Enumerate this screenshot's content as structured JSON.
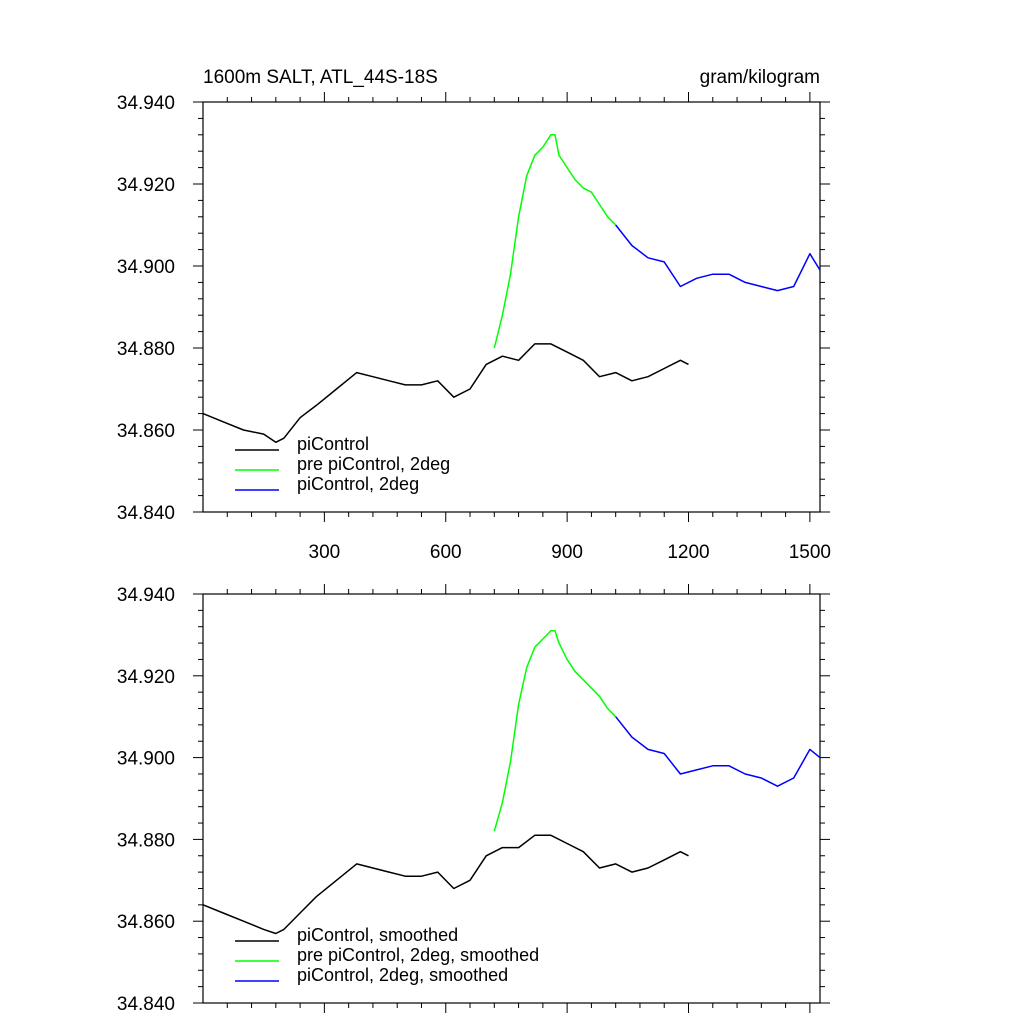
{
  "page": {
    "title_left": "1600m SALT, ATL_44S-18S",
    "title_right": "gram/kilogram"
  },
  "chart_data": [
    {
      "type": "line",
      "title": "1600m SALT, ATL_44S-18S",
      "units": "gram/kilogram",
      "xlim": [
        0,
        1525
      ],
      "ylim": [
        34.84,
        34.94
      ],
      "x_ticks": [
        300,
        600,
        900,
        1200,
        1500
      ],
      "x_tick_labels": [
        "300",
        "600",
        "900",
        "1200",
        "1500"
      ],
      "y_ticks": [
        34.84,
        34.86,
        34.88,
        34.9,
        34.92,
        34.94
      ],
      "y_tick_labels": [
        "34.840",
        "34.860",
        "34.880",
        "34.900",
        "34.920",
        "34.940"
      ],
      "grid": false,
      "legend_position": "bottom-left",
      "series": [
        {
          "name": "piControl",
          "color": "#000000",
          "x": [
            0,
            50,
            100,
            150,
            180,
            200,
            240,
            280,
            330,
            380,
            420,
            460,
            500,
            540,
            580,
            620,
            660,
            700,
            740,
            780,
            820,
            860,
            900,
            940,
            980,
            1020,
            1060,
            1100,
            1140,
            1180,
            1200
          ],
          "y": [
            34.864,
            34.862,
            34.86,
            34.859,
            34.857,
            34.858,
            34.863,
            34.866,
            34.87,
            34.874,
            34.873,
            34.872,
            34.871,
            34.871,
            34.872,
            34.868,
            34.87,
            34.876,
            34.878,
            34.877,
            34.881,
            34.881,
            34.879,
            34.877,
            34.873,
            34.874,
            34.872,
            34.873,
            34.875,
            34.877,
            34.876
          ]
        },
        {
          "name": "pre piControl, 2deg",
          "color": "#00ff00",
          "x": [
            720,
            740,
            760,
            780,
            800,
            820,
            840,
            860,
            870,
            880,
            900,
            920,
            940,
            960,
            980,
            1000,
            1020
          ],
          "y": [
            34.88,
            34.888,
            34.898,
            34.912,
            34.922,
            34.927,
            34.929,
            34.932,
            34.932,
            34.927,
            34.924,
            34.921,
            34.919,
            34.918,
            34.915,
            34.912,
            34.91
          ]
        },
        {
          "name": "piControl, 2deg",
          "color": "#0000ff",
          "x": [
            1020,
            1060,
            1100,
            1140,
            1180,
            1220,
            1260,
            1300,
            1340,
            1380,
            1420,
            1460,
            1500,
            1525
          ],
          "y": [
            34.91,
            34.905,
            34.902,
            34.901,
            34.895,
            34.897,
            34.898,
            34.898,
            34.896,
            34.895,
            34.894,
            34.895,
            34.903,
            34.899
          ]
        }
      ]
    },
    {
      "type": "line",
      "xlim": [
        0,
        1525
      ],
      "ylim": [
        34.84,
        34.94
      ],
      "y_ticks": [
        34.84,
        34.86,
        34.88,
        34.9,
        34.92,
        34.94
      ],
      "y_tick_labels": [
        "34.840",
        "34.860",
        "34.880",
        "34.900",
        "34.920",
        "34.940"
      ],
      "x_ticks": [
        300,
        600,
        900,
        1200,
        1500
      ],
      "grid": false,
      "legend_position": "bottom-left",
      "series": [
        {
          "name": "piControl, smoothed",
          "color": "#000000",
          "x": [
            0,
            50,
            100,
            150,
            180,
            200,
            240,
            280,
            330,
            380,
            420,
            460,
            500,
            540,
            580,
            620,
            660,
            700,
            740,
            780,
            820,
            860,
            900,
            940,
            980,
            1020,
            1060,
            1100,
            1140,
            1180,
            1200
          ],
          "y": [
            34.864,
            34.862,
            34.86,
            34.858,
            34.857,
            34.858,
            34.862,
            34.866,
            34.87,
            34.874,
            34.873,
            34.872,
            34.871,
            34.871,
            34.872,
            34.868,
            34.87,
            34.876,
            34.878,
            34.878,
            34.881,
            34.881,
            34.879,
            34.877,
            34.873,
            34.874,
            34.872,
            34.873,
            34.875,
            34.877,
            34.876
          ]
        },
        {
          "name": "pre piControl, 2deg, smoothed",
          "color": "#00ff00",
          "x": [
            720,
            740,
            760,
            780,
            800,
            820,
            840,
            860,
            870,
            880,
            900,
            920,
            940,
            960,
            980,
            1000,
            1020
          ],
          "y": [
            34.882,
            34.889,
            34.899,
            34.913,
            34.922,
            34.927,
            34.929,
            34.931,
            34.931,
            34.928,
            34.924,
            34.921,
            34.919,
            34.917,
            34.915,
            34.912,
            34.91
          ]
        },
        {
          "name": "piControl, 2deg, smoothed",
          "color": "#0000ff",
          "x": [
            1020,
            1060,
            1100,
            1140,
            1180,
            1220,
            1260,
            1300,
            1340,
            1380,
            1420,
            1460,
            1500,
            1525
          ],
          "y": [
            34.91,
            34.905,
            34.902,
            34.901,
            34.896,
            34.897,
            34.898,
            34.898,
            34.896,
            34.895,
            34.893,
            34.895,
            34.902,
            34.9
          ]
        }
      ]
    }
  ]
}
